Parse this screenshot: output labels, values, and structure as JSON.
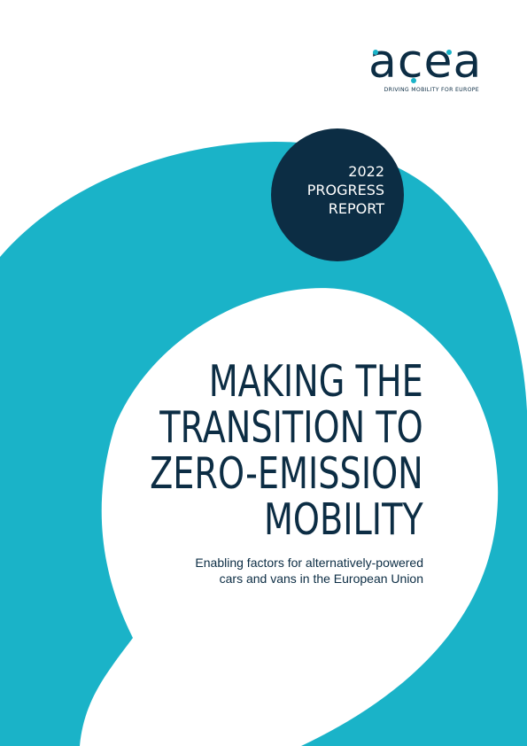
{
  "logo": {
    "wordmark": "acea",
    "tagline": "DRIVING MOBILITY FOR EUROPE"
  },
  "badge": {
    "lines": [
      "2022",
      "PROGRESS",
      "REPORT"
    ]
  },
  "headline": {
    "lines": [
      "MAKING THE",
      "TRANSITION TO",
      "ZERO-EMISSION",
      "MOBILITY"
    ]
  },
  "subtitle": {
    "lines": [
      "Enabling factors for alternatively-powered",
      "cars and vans in the European Union"
    ]
  },
  "colors": {
    "accent": "#1ab3c8",
    "navy": "#0c2d44",
    "background": "#ffffff"
  }
}
